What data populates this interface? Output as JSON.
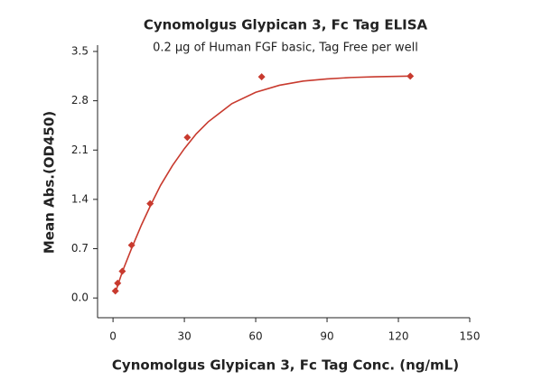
{
  "chart_data": {
    "type": "scatter",
    "title": "Cynomolgus Glypican 3, Fc Tag ELISA",
    "subtitle": "0.2 μg of Human FGF basic, Tag Free per well",
    "x_label": "Cynomolgus Glypican 3, Fc Tag Conc. (ng/mL)",
    "y_label": "Mean Abs.(OD450)",
    "x": [
      0.98,
      1.95,
      3.9,
      7.8,
      15.6,
      31.25,
      62.5,
      125
    ],
    "series": [
      {
        "color": "#c83a2e",
        "values": [
          0.1,
          0.21,
          0.38,
          0.75,
          1.34,
          2.28,
          3.14,
          3.15
        ]
      }
    ],
    "fit": {
      "color": "#c83a2e",
      "x": [
        1,
        4,
        8,
        12,
        16,
        20,
        25,
        30,
        35,
        40,
        50,
        60,
        70,
        80,
        90,
        100,
        110,
        125
      ],
      "values": [
        0.08,
        0.38,
        0.72,
        1.04,
        1.33,
        1.6,
        1.88,
        2.12,
        2.33,
        2.5,
        2.76,
        2.92,
        3.02,
        3.08,
        3.11,
        3.13,
        3.14,
        3.15
      ]
    },
    "xlim": [
      -6.5,
      150
    ],
    "xticks": [
      0,
      30,
      60,
      90,
      120,
      150
    ],
    "ylim": [
      -0.28,
      3.5
    ],
    "yticks": [
      {
        "value": 0,
        "label": "0.0"
      },
      0.7,
      1.4,
      2.1,
      2.8,
      3.5
    ],
    "grid": false
  }
}
